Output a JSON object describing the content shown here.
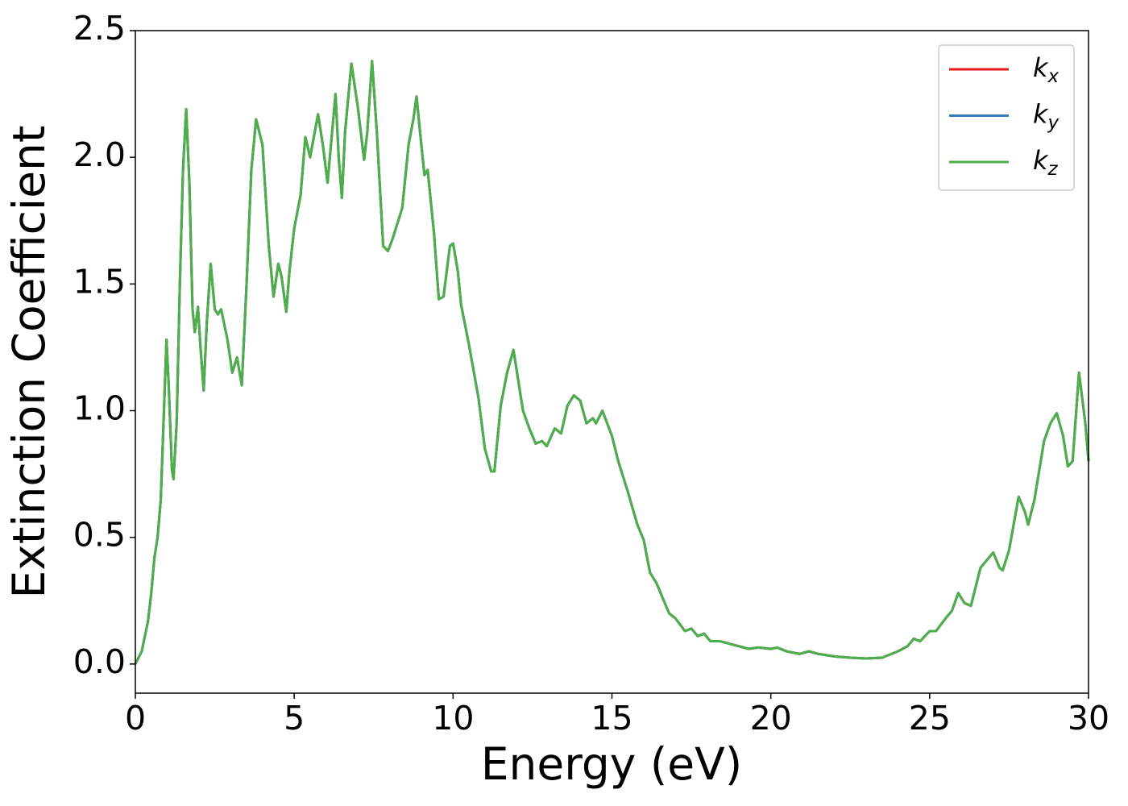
{
  "chart_data": {
    "type": "line",
    "xlabel": "Energy (eV)",
    "ylabel": "Extinction Coefficient",
    "xlim": [
      0,
      30
    ],
    "ylim": [
      -0.115,
      2.5
    ],
    "xticks": [
      0,
      5,
      10,
      15,
      20,
      25,
      30
    ],
    "yticks": [
      {
        "value": 0,
        "label": "0.0"
      },
      0.5,
      {
        "value": 1,
        "label": "1.0"
      },
      1.5,
      {
        "value": 2,
        "label": "2.0"
      },
      2.5
    ],
    "legend": "upper right",
    "x": [
      0,
      0.2,
      0.4,
      0.5,
      0.6,
      0.7,
      0.8,
      0.9,
      0.98,
      1.05,
      1.15,
      1.2,
      1.3,
      1.4,
      1.5,
      1.6,
      1.7,
      1.8,
      1.87,
      1.97,
      2.05,
      2.15,
      2.25,
      2.37,
      2.5,
      2.6,
      2.7,
      2.9,
      3.05,
      3.2,
      3.35,
      3.5,
      3.65,
      3.8,
      4.0,
      4.2,
      4.35,
      4.5,
      4.6,
      4.75,
      4.85,
      5.0,
      5.2,
      5.35,
      5.5,
      5.75,
      5.9,
      6.05,
      6.3,
      6.4,
      6.5,
      6.6,
      6.8,
      7.0,
      7.2,
      7.3,
      7.45,
      7.6,
      7.8,
      7.95,
      8.1,
      8.4,
      8.6,
      8.75,
      8.85,
      9.0,
      9.1,
      9.2,
      9.4,
      9.55,
      9.7,
      9.9,
      10.0,
      10.15,
      10.25,
      10.5,
      10.8,
      11.0,
      11.2,
      11.3,
      11.5,
      11.7,
      11.9,
      12.05,
      12.2,
      12.4,
      12.6,
      12.8,
      12.95,
      13.2,
      13.4,
      13.6,
      13.8,
      14.0,
      14.2,
      14.4,
      14.5,
      14.7,
      15.0,
      15.2,
      15.5,
      15.8,
      16.0,
      16.2,
      16.4,
      16.6,
      16.8,
      17.0,
      17.3,
      17.5,
      17.7,
      17.9,
      18.1,
      18.4,
      18.7,
      19.0,
      19.3,
      19.6,
      20.0,
      20.2,
      20.5,
      20.9,
      21.2,
      21.5,
      22.0,
      22.5,
      23.0,
      23.5,
      24.0,
      24.3,
      24.5,
      24.7,
      25.0,
      25.2,
      25.5,
      25.7,
      25.9,
      26.1,
      26.3,
      26.6,
      26.8,
      27.0,
      27.2,
      27.3,
      27.5,
      27.8,
      28.0,
      28.1,
      28.3,
      28.6,
      28.8,
      29.0,
      29.2,
      29.35,
      29.5,
      29.7,
      29.9,
      30.0
    ],
    "series": [
      {
        "name": "kx",
        "color": "#e41a1c",
        "values": [
          0,
          0.05,
          0.17,
          0.28,
          0.42,
          0.5,
          0.65,
          1.0,
          1.28,
          1.1,
          0.77,
          0.73,
          0.95,
          1.5,
          1.95,
          2.19,
          1.9,
          1.4,
          1.31,
          1.41,
          1.25,
          1.08,
          1.35,
          1.58,
          1.4,
          1.38,
          1.4,
          1.28,
          1.15,
          1.21,
          1.1,
          1.5,
          1.95,
          2.15,
          2.05,
          1.65,
          1.45,
          1.58,
          1.53,
          1.39,
          1.55,
          1.72,
          1.85,
          2.08,
          2.0,
          2.17,
          2.05,
          1.9,
          2.25,
          2.0,
          1.84,
          2.1,
          2.37,
          2.2,
          1.99,
          2.1,
          2.38,
          2.1,
          1.65,
          1.63,
          1.68,
          1.8,
          2.05,
          2.15,
          2.24,
          2.05,
          1.93,
          1.95,
          1.7,
          1.44,
          1.45,
          1.65,
          1.66,
          1.55,
          1.42,
          1.26,
          1.05,
          0.85,
          0.76,
          0.76,
          1.02,
          1.15,
          1.24,
          1.12,
          1.0,
          0.93,
          0.87,
          0.88,
          0.86,
          0.93,
          0.91,
          1.02,
          1.06,
          1.04,
          0.95,
          0.97,
          0.95,
          1.0,
          0.9,
          0.8,
          0.68,
          0.55,
          0.49,
          0.36,
          0.32,
          0.26,
          0.2,
          0.18,
          0.13,
          0.14,
          0.11,
          0.12,
          0.09,
          0.09,
          0.08,
          0.07,
          0.06,
          0.065,
          0.06,
          0.065,
          0.05,
          0.04,
          0.05,
          0.04,
          0.03,
          0.025,
          0.022,
          0.025,
          0.05,
          0.07,
          0.1,
          0.09,
          0.13,
          0.13,
          0.18,
          0.21,
          0.28,
          0.24,
          0.23,
          0.38,
          0.41,
          0.44,
          0.38,
          0.37,
          0.45,
          0.66,
          0.6,
          0.55,
          0.65,
          0.88,
          0.95,
          0.99,
          0.9,
          0.78,
          0.8,
          1.15,
          0.95,
          0.8
        ]
      },
      {
        "name": "ky",
        "color": "#377eb8",
        "values": [
          0,
          0.05,
          0.17,
          0.28,
          0.42,
          0.5,
          0.65,
          1.0,
          1.28,
          1.1,
          0.77,
          0.73,
          0.95,
          1.5,
          1.95,
          2.19,
          1.9,
          1.4,
          1.31,
          1.41,
          1.25,
          1.08,
          1.35,
          1.58,
          1.4,
          1.38,
          1.4,
          1.28,
          1.15,
          1.21,
          1.1,
          1.5,
          1.95,
          2.15,
          2.05,
          1.65,
          1.45,
          1.58,
          1.53,
          1.39,
          1.55,
          1.72,
          1.85,
          2.08,
          2.0,
          2.17,
          2.05,
          1.9,
          2.25,
          2.0,
          1.84,
          2.1,
          2.37,
          2.2,
          1.99,
          2.1,
          2.38,
          2.1,
          1.65,
          1.63,
          1.68,
          1.8,
          2.05,
          2.15,
          2.24,
          2.05,
          1.93,
          1.95,
          1.7,
          1.44,
          1.45,
          1.65,
          1.66,
          1.55,
          1.42,
          1.26,
          1.05,
          0.85,
          0.76,
          0.76,
          1.02,
          1.15,
          1.24,
          1.12,
          1.0,
          0.93,
          0.87,
          0.88,
          0.86,
          0.93,
          0.91,
          1.02,
          1.06,
          1.04,
          0.95,
          0.97,
          0.95,
          1.0,
          0.9,
          0.8,
          0.68,
          0.55,
          0.49,
          0.36,
          0.32,
          0.26,
          0.2,
          0.18,
          0.13,
          0.14,
          0.11,
          0.12,
          0.09,
          0.09,
          0.08,
          0.07,
          0.06,
          0.065,
          0.06,
          0.065,
          0.05,
          0.04,
          0.05,
          0.04,
          0.03,
          0.025,
          0.022,
          0.025,
          0.05,
          0.07,
          0.1,
          0.09,
          0.13,
          0.13,
          0.18,
          0.21,
          0.28,
          0.24,
          0.23,
          0.38,
          0.41,
          0.44,
          0.38,
          0.37,
          0.45,
          0.66,
          0.6,
          0.55,
          0.65,
          0.88,
          0.95,
          0.99,
          0.9,
          0.78,
          0.8,
          1.15,
          0.95,
          0.8
        ]
      },
      {
        "name": "kz",
        "color": "#4daf4a",
        "values": [
          0,
          0.05,
          0.17,
          0.28,
          0.42,
          0.5,
          0.65,
          1.0,
          1.28,
          1.1,
          0.77,
          0.73,
          0.95,
          1.5,
          1.95,
          2.19,
          1.9,
          1.4,
          1.31,
          1.41,
          1.25,
          1.08,
          1.35,
          1.58,
          1.4,
          1.38,
          1.4,
          1.28,
          1.15,
          1.21,
          1.1,
          1.5,
          1.95,
          2.15,
          2.05,
          1.65,
          1.45,
          1.58,
          1.53,
          1.39,
          1.55,
          1.72,
          1.85,
          2.08,
          2.0,
          2.17,
          2.05,
          1.9,
          2.25,
          2.0,
          1.84,
          2.1,
          2.37,
          2.2,
          1.99,
          2.1,
          2.38,
          2.1,
          1.65,
          1.63,
          1.68,
          1.8,
          2.05,
          2.15,
          2.24,
          2.05,
          1.93,
          1.95,
          1.7,
          1.44,
          1.45,
          1.65,
          1.66,
          1.55,
          1.42,
          1.26,
          1.05,
          0.85,
          0.76,
          0.76,
          1.02,
          1.15,
          1.24,
          1.12,
          1.0,
          0.93,
          0.87,
          0.88,
          0.86,
          0.93,
          0.91,
          1.02,
          1.06,
          1.04,
          0.95,
          0.97,
          0.95,
          1.0,
          0.9,
          0.8,
          0.68,
          0.55,
          0.49,
          0.36,
          0.32,
          0.26,
          0.2,
          0.18,
          0.13,
          0.14,
          0.11,
          0.12,
          0.09,
          0.09,
          0.08,
          0.07,
          0.06,
          0.065,
          0.06,
          0.065,
          0.05,
          0.04,
          0.05,
          0.04,
          0.03,
          0.025,
          0.022,
          0.025,
          0.05,
          0.07,
          0.1,
          0.09,
          0.13,
          0.13,
          0.18,
          0.21,
          0.28,
          0.24,
          0.23,
          0.38,
          0.41,
          0.44,
          0.38,
          0.37,
          0.45,
          0.66,
          0.6,
          0.55,
          0.65,
          0.88,
          0.95,
          0.99,
          0.9,
          0.78,
          0.8,
          1.15,
          0.95,
          0.8
        ]
      }
    ]
  }
}
